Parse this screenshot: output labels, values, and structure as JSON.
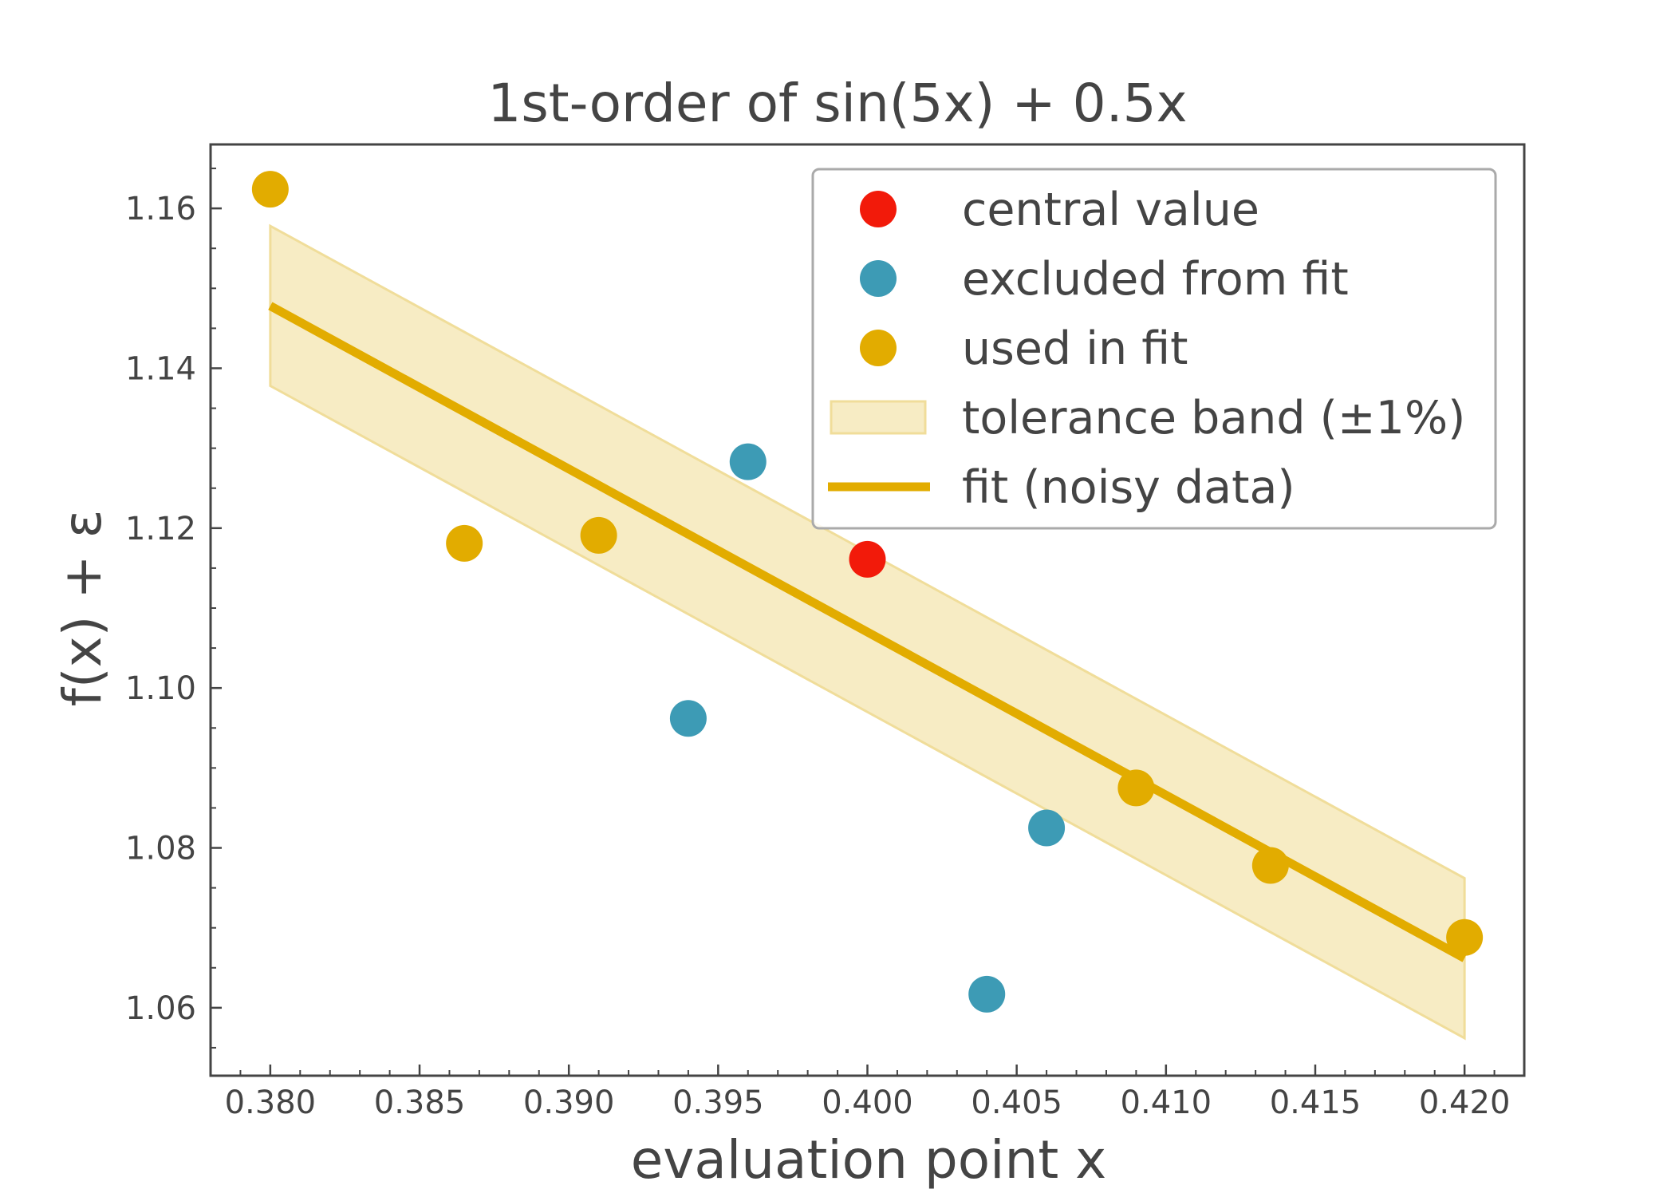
{
  "chart_data": {
    "type": "scatter",
    "title": "1st-order of sin(5x) + 0.5x",
    "xlabel": "evaluation point x",
    "ylabel": "f(x) + ε",
    "xlim": [
      0.378,
      0.422
    ],
    "ylim": [
      1.0515,
      1.168
    ],
    "x_ticks": [
      0.38,
      0.385,
      0.39,
      0.395,
      0.4,
      0.405,
      0.41,
      0.415,
      0.42
    ],
    "x_tick_labels": [
      "0.380",
      "0.385",
      "0.390",
      "0.395",
      "0.400",
      "0.405",
      "0.410",
      "0.415",
      "0.420"
    ],
    "y_ticks": [
      1.06,
      1.08,
      1.1,
      1.12,
      1.14,
      1.16
    ],
    "y_tick_labels": [
      "1.06",
      "1.08",
      "1.10",
      "1.12",
      "1.14",
      "1.16"
    ],
    "y_minor_step": 0.005,
    "x_minor_step": 0.001,
    "grid": false,
    "legend_position": "top-right",
    "series": [
      {
        "name": "central value",
        "kind": "points",
        "color": "#f21a0a",
        "x": [
          0.4
        ],
        "y": [
          1.1161
        ]
      },
      {
        "name": "excluded from fit",
        "kind": "points",
        "color": "#3d9bb5",
        "x": [
          0.394,
          0.396,
          0.404,
          0.406
        ],
        "y": [
          1.0962,
          1.1283,
          1.0617,
          1.0825
        ]
      },
      {
        "name": "used in fit",
        "kind": "points",
        "color": "#e2ac00",
        "x": [
          0.38,
          0.3865,
          0.391,
          0.409,
          0.4135,
          0.42
        ],
        "y": [
          1.1624,
          1.1181,
          1.1191,
          1.0875,
          1.0778,
          1.0688
        ]
      },
      {
        "name": "tolerance band (±1%)",
        "kind": "band",
        "color": "#f7ecc4",
        "edge_color": "#f0dd9a",
        "x": [
          0.38,
          0.42
        ],
        "lower": [
          1.1378,
          1.0562
        ],
        "upper": [
          1.1578,
          1.0762
        ]
      },
      {
        "name": "fit (noisy data)",
        "kind": "line",
        "color": "#e2ac00",
        "x": [
          0.38,
          0.42
        ],
        "y": [
          1.1478,
          1.0662
        ]
      }
    ]
  }
}
